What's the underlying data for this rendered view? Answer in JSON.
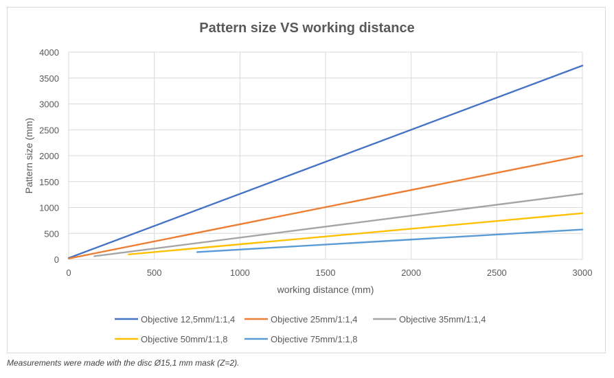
{
  "chart_data": {
    "type": "line",
    "title": "Pattern size VS working distance",
    "xlabel": "working distance (mm)",
    "ylabel": "Pattern size (mm)",
    "xlim": [
      0,
      3000
    ],
    "ylim": [
      0,
      4000
    ],
    "x_ticks": [
      "0",
      "500",
      "1000",
      "1500",
      "2000",
      "2500",
      "3000"
    ],
    "y_ticks": [
      "0",
      "500",
      "1000",
      "1500",
      "2000",
      "2500",
      "3000",
      "3500",
      "4000"
    ],
    "grid": true,
    "legend": "bottom",
    "series": [
      {
        "name": "Objective 12,5mm/1:1,4",
        "color": "#4472c4",
        "x": [
          0,
          3000
        ],
        "y": [
          25,
          3740
        ]
      },
      {
        "name": "Objective 25mm/1:1,4",
        "color": "#ed7d31",
        "x": [
          0,
          3000
        ],
        "y": [
          15,
          2000
        ]
      },
      {
        "name": "Objective 35mm/1:1,4",
        "color": "#a5a5a5",
        "x": [
          150,
          3000
        ],
        "y": [
          60,
          1265
        ]
      },
      {
        "name": "Objective 50mm/1:1,8",
        "color": "#ffc000",
        "x": [
          350,
          3000
        ],
        "y": [
          95,
          890
        ]
      },
      {
        "name": "Objective 75mm/1:1,8",
        "color": "#5b9bd5",
        "x": [
          750,
          3000
        ],
        "y": [
          140,
          575
        ]
      }
    ]
  },
  "footnote": "Measurements were made with the disc Ø15,1 mm mask (Z=2)."
}
